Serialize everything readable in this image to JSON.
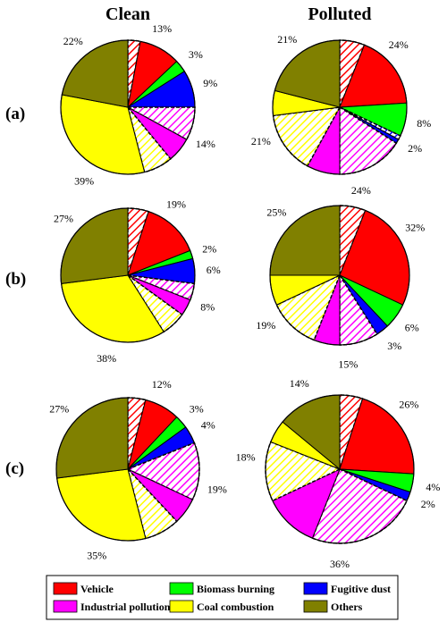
{
  "columns": [
    "Clean",
    "Polluted"
  ],
  "rows": [
    "(a)",
    "(b)",
    "(c)"
  ],
  "colors": {
    "vehicle": "#ff0000",
    "biomass": "#00ff00",
    "dust": "#0000ff",
    "industrial": "#ff00ff",
    "coal": "#ffff00",
    "others": "#808000"
  },
  "legend": [
    {
      "label": "Vehicle",
      "key": "vehicle"
    },
    {
      "label": "Biomass burning",
      "key": "biomass"
    },
    {
      "label": "Fugitive dust",
      "key": "dust"
    },
    {
      "label": "Industrial pollution",
      "key": "industrial"
    },
    {
      "label": "Coal combustion",
      "key": "coal"
    },
    {
      "label": "Others",
      "key": "others"
    }
  ],
  "chart_data": [
    {
      "type": "pie",
      "row": "(a)",
      "column": "Clean",
      "slices": [
        {
          "key": "vehicle",
          "value": 13,
          "label": "13%",
          "hatched": 3
        },
        {
          "key": "biomass",
          "value": 3,
          "label": "3%",
          "hatched": 0
        },
        {
          "key": "dust",
          "value": 9,
          "label": "9%",
          "hatched": 0
        },
        {
          "key": "industrial",
          "value": 14,
          "label": "14%",
          "hatched": 8
        },
        {
          "key": "coal",
          "value": 39,
          "label": "39%",
          "hatched": 7
        },
        {
          "key": "others",
          "value": 22,
          "label": "22%",
          "hatched": 0
        }
      ]
    },
    {
      "type": "pie",
      "row": "(a)",
      "column": "Polluted",
      "slices": [
        {
          "key": "vehicle",
          "value": 24,
          "label": "24%",
          "hatched": 6
        },
        {
          "key": "biomass",
          "value": 8,
          "label": "8%",
          "hatched": 0
        },
        {
          "key": "dust",
          "value": 2,
          "label": "2%",
          "hatched": 1
        },
        {
          "key": "industrial",
          "value": 24,
          "label": "24%",
          "hatched": 16
        },
        {
          "key": "coal",
          "value": 21,
          "label": "21%",
          "hatched": 15
        },
        {
          "key": "others",
          "value": 21,
          "label": "21%",
          "hatched": 0
        }
      ]
    },
    {
      "type": "pie",
      "row": "(b)",
      "column": "Clean",
      "slices": [
        {
          "key": "vehicle",
          "value": 19,
          "label": "19%",
          "hatched": 5
        },
        {
          "key": "biomass",
          "value": 2,
          "label": "2%",
          "hatched": 0
        },
        {
          "key": "dust",
          "value": 6,
          "label": "6%",
          "hatched": 0
        },
        {
          "key": "industrial",
          "value": 8,
          "label": "8%",
          "hatched": 4
        },
        {
          "key": "coal",
          "value": 38,
          "label": "38%",
          "hatched": 6
        },
        {
          "key": "others",
          "value": 27,
          "label": "27%",
          "hatched": 0
        }
      ]
    },
    {
      "type": "pie",
      "row": "(b)",
      "column": "Polluted",
      "slices": [
        {
          "key": "vehicle",
          "value": 32,
          "label": "32%",
          "hatched": 6
        },
        {
          "key": "biomass",
          "value": 6,
          "label": "6%",
          "hatched": 0
        },
        {
          "key": "dust",
          "value": 3,
          "label": "3%",
          "hatched": 0
        },
        {
          "key": "industrial",
          "value": 15,
          "label": "15%",
          "hatched": 9
        },
        {
          "key": "coal",
          "value": 19,
          "label": "19%",
          "hatched": 12
        },
        {
          "key": "others",
          "value": 25,
          "label": "25%",
          "hatched": 0
        }
      ]
    },
    {
      "type": "pie",
      "row": "(c)",
      "column": "Clean",
      "slices": [
        {
          "key": "vehicle",
          "value": 12,
          "label": "12%",
          "hatched": 4
        },
        {
          "key": "biomass",
          "value": 3,
          "label": "3%",
          "hatched": 0
        },
        {
          "key": "dust",
          "value": 4,
          "label": "4%",
          "hatched": 0
        },
        {
          "key": "industrial",
          "value": 19,
          "label": "19%",
          "hatched": 13
        },
        {
          "key": "coal",
          "value": 35,
          "label": "35%",
          "hatched": 8
        },
        {
          "key": "others",
          "value": 27,
          "label": "27%",
          "hatched": 0
        }
      ]
    },
    {
      "type": "pie",
      "row": "(c)",
      "column": "Polluted",
      "slices": [
        {
          "key": "vehicle",
          "value": 26,
          "label": "26%",
          "hatched": 5
        },
        {
          "key": "biomass",
          "value": 4,
          "label": "4%",
          "hatched": 0
        },
        {
          "key": "dust",
          "value": 2,
          "label": "2%",
          "hatched": 0
        },
        {
          "key": "industrial",
          "value": 36,
          "label": "36%",
          "hatched": 24
        },
        {
          "key": "coal",
          "value": 18,
          "label": "18%",
          "hatched": 13
        },
        {
          "key": "others",
          "value": 14,
          "label": "14%",
          "hatched": 0
        }
      ]
    }
  ]
}
